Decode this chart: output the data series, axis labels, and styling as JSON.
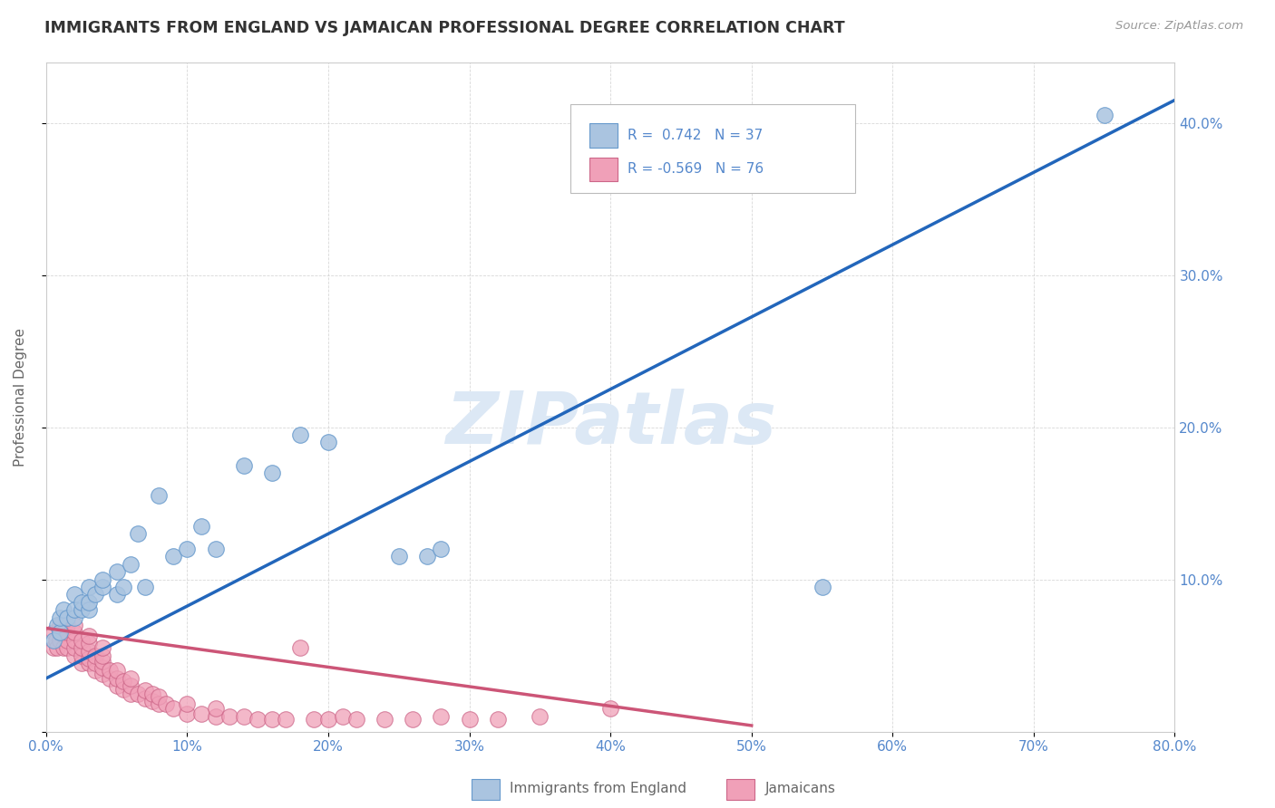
{
  "title": "IMMIGRANTS FROM ENGLAND VS JAMAICAN PROFESSIONAL DEGREE CORRELATION CHART",
  "source_text": "Source: ZipAtlas.com",
  "ylabel": "Professional Degree",
  "watermark": "ZIPatlas",
  "legend_blue_label": "Immigrants from England",
  "legend_pink_label": "Jamaicans",
  "xlim": [
    0.0,
    0.8
  ],
  "ylim": [
    0.0,
    0.44
  ],
  "background_color": "#ffffff",
  "grid_color": "#c8c8c8",
  "blue_color": "#aac4e0",
  "blue_edge_color": "#6699cc",
  "blue_line_color": "#2266bb",
  "pink_color": "#f0a0b8",
  "pink_edge_color": "#cc6688",
  "pink_line_color": "#cc5577",
  "title_color": "#333333",
  "axis_label_color": "#666666",
  "tick_label_color": "#5588cc",
  "watermark_color": "#dce8f5",
  "blue_scatter_x": [
    0.005,
    0.008,
    0.01,
    0.01,
    0.012,
    0.015,
    0.02,
    0.02,
    0.02,
    0.025,
    0.025,
    0.03,
    0.03,
    0.03,
    0.035,
    0.04,
    0.04,
    0.05,
    0.05,
    0.055,
    0.06,
    0.065,
    0.07,
    0.08,
    0.09,
    0.1,
    0.11,
    0.12,
    0.14,
    0.16,
    0.18,
    0.2,
    0.25,
    0.27,
    0.28,
    0.55,
    0.75
  ],
  "blue_scatter_y": [
    0.06,
    0.07,
    0.065,
    0.075,
    0.08,
    0.075,
    0.075,
    0.08,
    0.09,
    0.08,
    0.085,
    0.08,
    0.085,
    0.095,
    0.09,
    0.095,
    0.1,
    0.09,
    0.105,
    0.095,
    0.11,
    0.13,
    0.095,
    0.155,
    0.115,
    0.12,
    0.135,
    0.12,
    0.175,
    0.17,
    0.195,
    0.19,
    0.115,
    0.115,
    0.12,
    0.095,
    0.405
  ],
  "blue_line_x0": 0.0,
  "blue_line_y0": 0.035,
  "blue_line_x1": 0.8,
  "blue_line_y1": 0.415,
  "pink_scatter_x": [
    0.005,
    0.005,
    0.007,
    0.008,
    0.01,
    0.01,
    0.01,
    0.012,
    0.012,
    0.015,
    0.015,
    0.015,
    0.015,
    0.02,
    0.02,
    0.02,
    0.02,
    0.02,
    0.025,
    0.025,
    0.025,
    0.025,
    0.03,
    0.03,
    0.03,
    0.03,
    0.03,
    0.035,
    0.035,
    0.035,
    0.04,
    0.04,
    0.04,
    0.04,
    0.04,
    0.045,
    0.045,
    0.05,
    0.05,
    0.05,
    0.055,
    0.055,
    0.06,
    0.06,
    0.06,
    0.065,
    0.07,
    0.07,
    0.075,
    0.075,
    0.08,
    0.08,
    0.085,
    0.09,
    0.1,
    0.1,
    0.11,
    0.12,
    0.12,
    0.13,
    0.14,
    0.15,
    0.16,
    0.17,
    0.18,
    0.19,
    0.2,
    0.21,
    0.22,
    0.24,
    0.26,
    0.28,
    0.3,
    0.32,
    0.35,
    0.4
  ],
  "pink_scatter_y": [
    0.055,
    0.065,
    0.06,
    0.055,
    0.06,
    0.065,
    0.07,
    0.055,
    0.065,
    0.055,
    0.06,
    0.065,
    0.07,
    0.05,
    0.055,
    0.06,
    0.065,
    0.07,
    0.045,
    0.05,
    0.055,
    0.06,
    0.045,
    0.048,
    0.053,
    0.058,
    0.063,
    0.04,
    0.045,
    0.05,
    0.038,
    0.042,
    0.046,
    0.05,
    0.055,
    0.035,
    0.04,
    0.03,
    0.035,
    0.04,
    0.028,
    0.033,
    0.025,
    0.03,
    0.035,
    0.025,
    0.022,
    0.027,
    0.02,
    0.025,
    0.018,
    0.023,
    0.018,
    0.015,
    0.012,
    0.018,
    0.012,
    0.01,
    0.015,
    0.01,
    0.01,
    0.008,
    0.008,
    0.008,
    0.055,
    0.008,
    0.008,
    0.01,
    0.008,
    0.008,
    0.008,
    0.01,
    0.008,
    0.008,
    0.01,
    0.015
  ],
  "pink_line_x0": 0.0,
  "pink_line_y0": 0.068,
  "pink_line_x1": 0.5,
  "pink_line_y1": 0.004
}
